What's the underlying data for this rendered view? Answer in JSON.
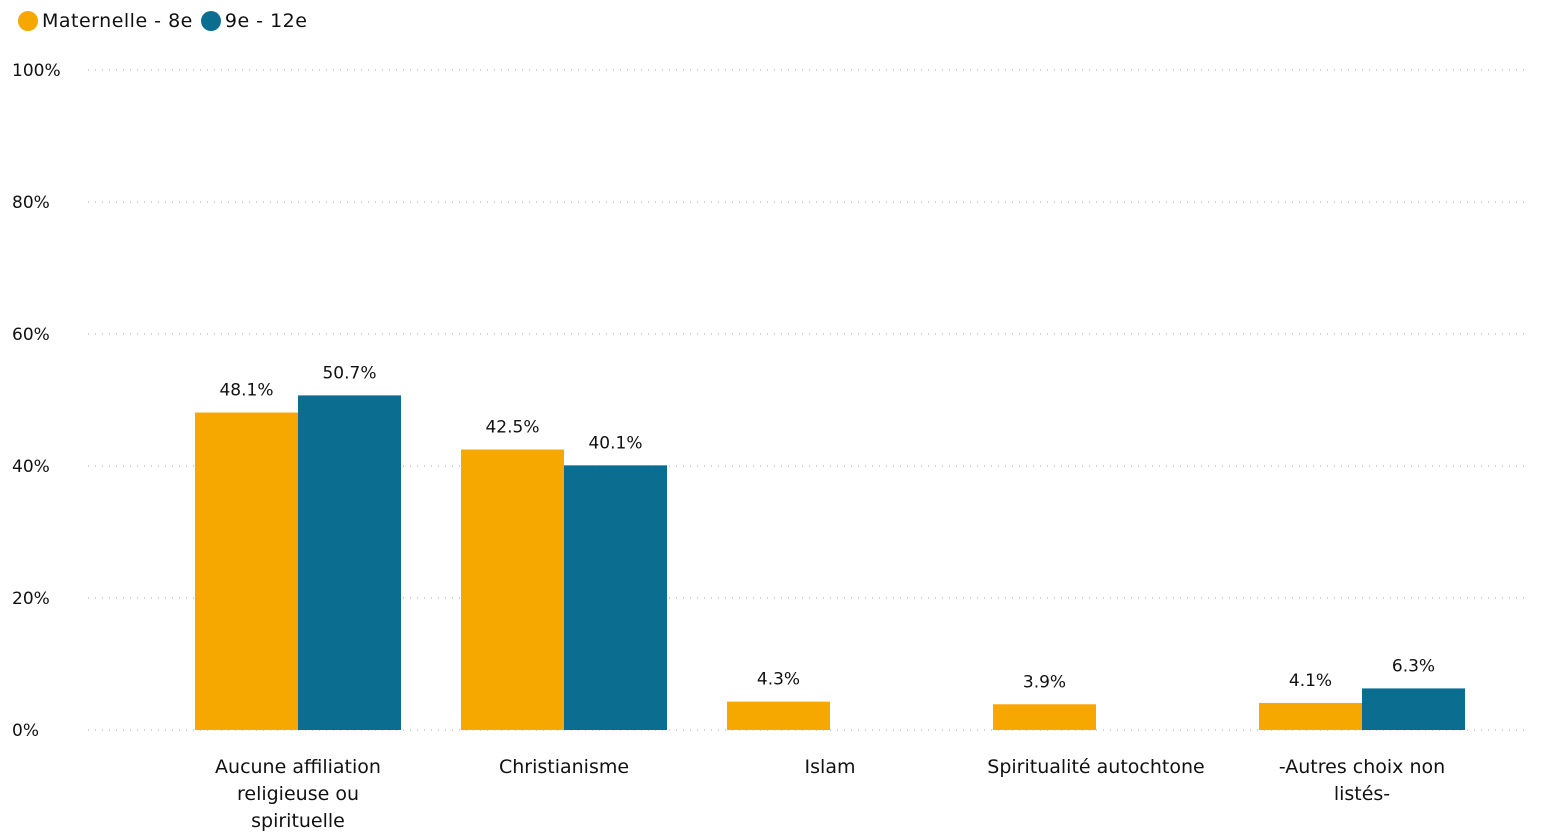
{
  "chart_data": {
    "type": "bar",
    "title": "",
    "xlabel": "",
    "ylabel": "",
    "ylim": [
      0,
      100
    ],
    "yticks": [
      0,
      20,
      40,
      60,
      80,
      100
    ],
    "ytick_suffix": "%",
    "grid": true,
    "legend_position": "top-left",
    "categories": [
      [
        "Aucune affiliation",
        "religieuse ou",
        "spirituelle"
      ],
      [
        "Christianisme"
      ],
      [
        "Islam"
      ],
      [
        "Spiritualité autochtone"
      ],
      [
        "-Autres choix non",
        "listés-"
      ]
    ],
    "series": [
      {
        "name": "Maternelle - 8e",
        "color": "#F7A800",
        "values": [
          48.1,
          42.5,
          4.3,
          3.9,
          4.1
        ],
        "labels": [
          "48.1%",
          "42.5%",
          "4.3%",
          "3.9%",
          "4.1%"
        ]
      },
      {
        "name": "9e - 12e",
        "color": "#0B6E91",
        "values": [
          50.7,
          40.1,
          null,
          null,
          6.3
        ],
        "labels": [
          "50.7%",
          "40.1%",
          "",
          "",
          "6.3%"
        ]
      }
    ]
  }
}
